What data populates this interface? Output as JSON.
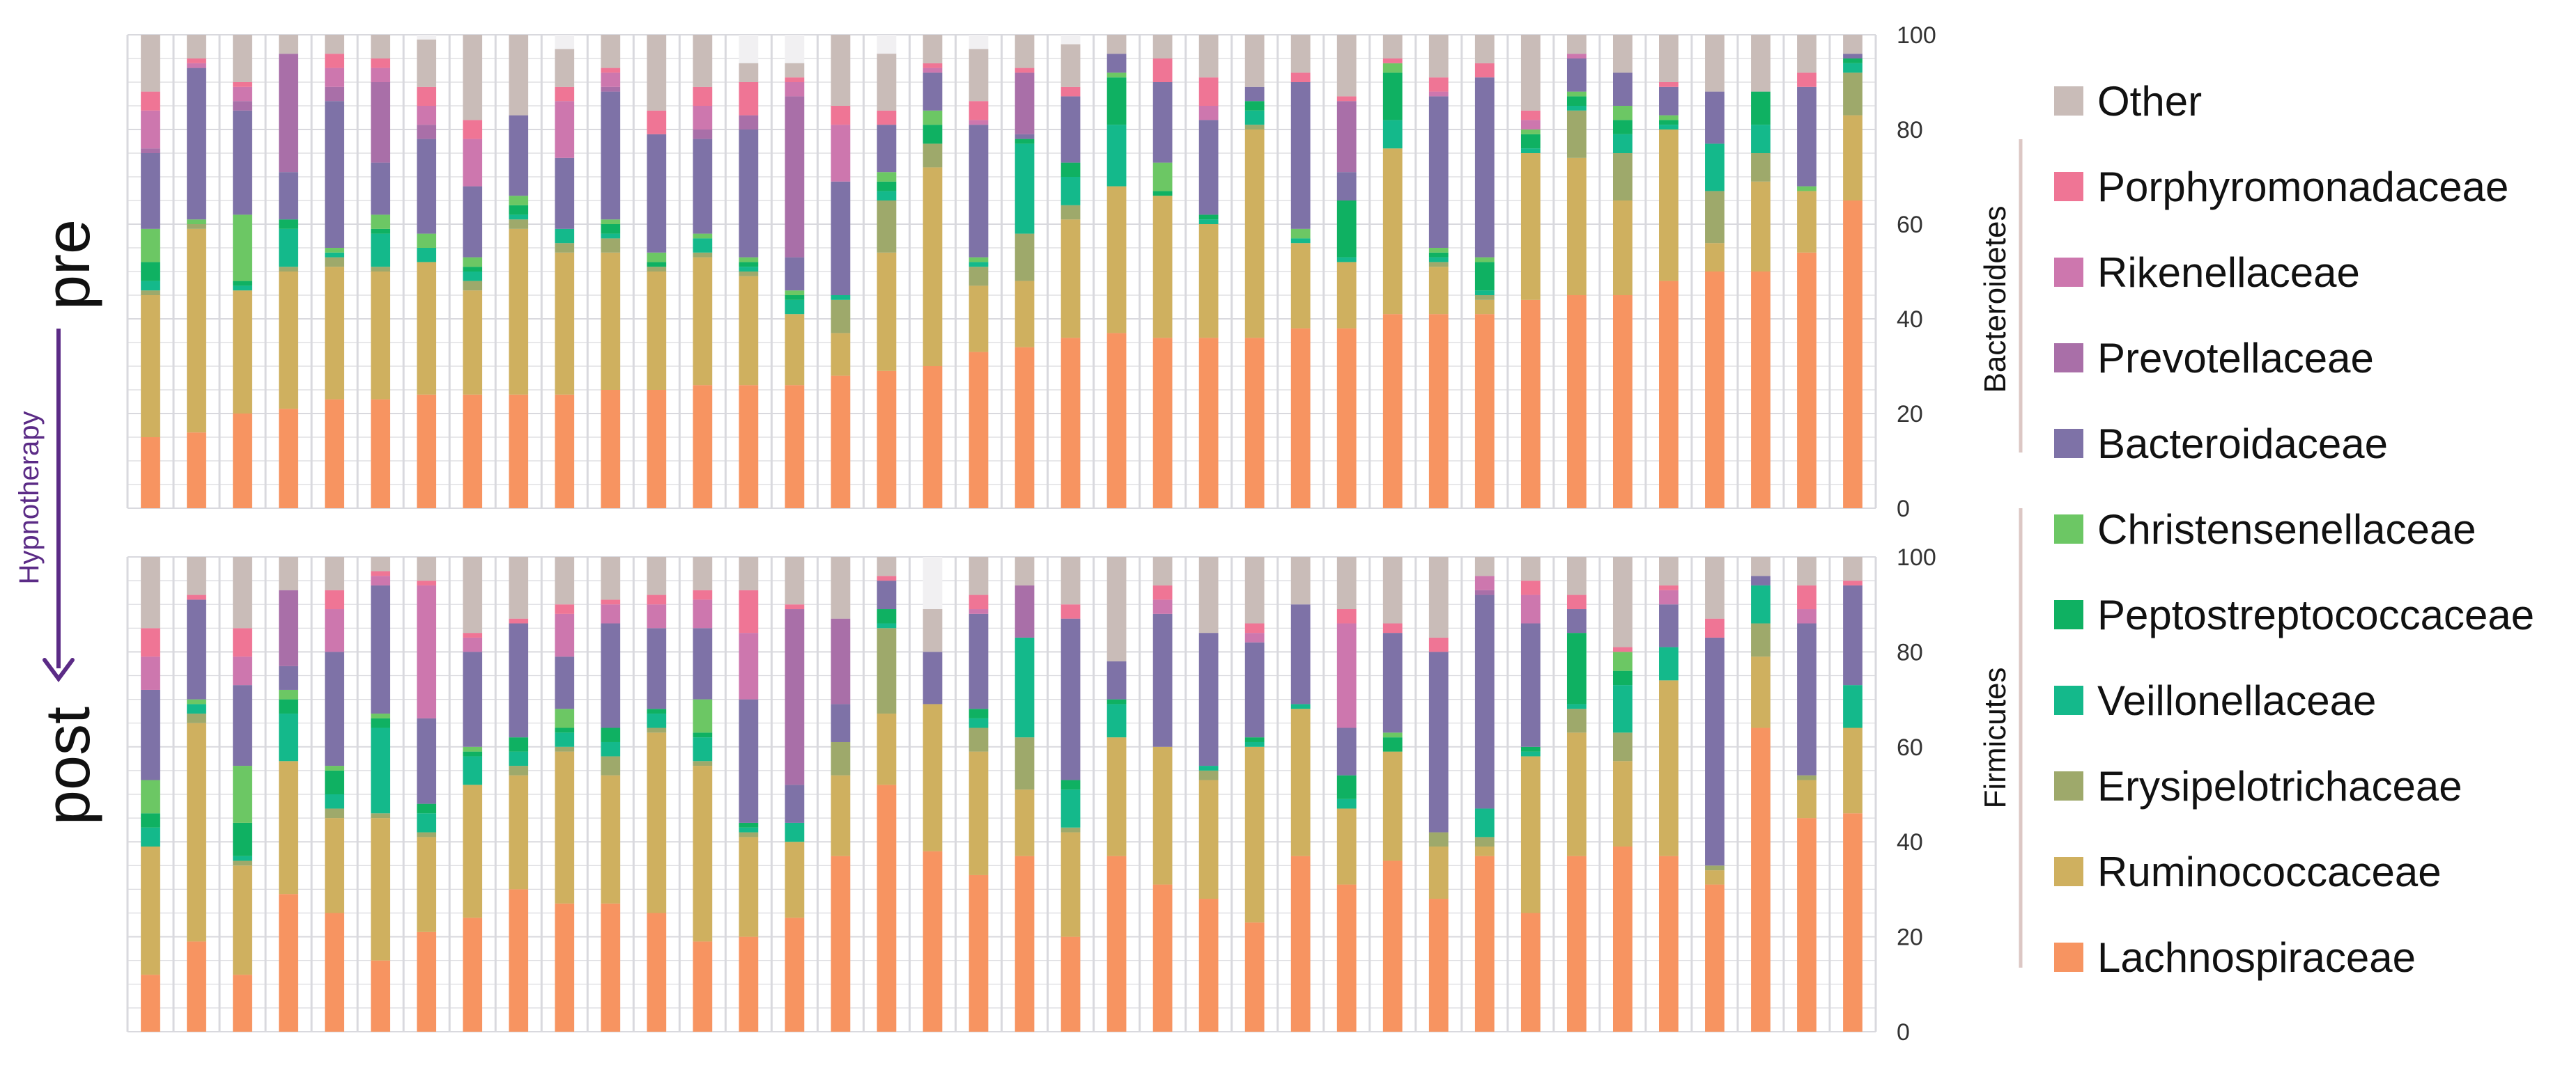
{
  "panel_labels": {
    "pre": "pre",
    "post": "post"
  },
  "arrow_label": "Hypnotherapy",
  "group_labels": {
    "bacteroidetes": "Bacteroidetes",
    "firmicutes": "Firmicutes"
  },
  "colors": {
    "Lachnospiraceae": "#f79461",
    "Ruminococcaceae": "#cfb05f",
    "Erysipelotrichaceae": "#9ea96b",
    "Veillonellaceae": "#14b98b",
    "Peptostreptococcaceae": "#0fb162",
    "Christensenellaceae": "#6cc764",
    "Bacteroidaceae": "#7e72a7",
    "Prevotellaceae": "#a96fa8",
    "Rikenellaceae": "#cd77ae",
    "Porphyromonadaceae": "#ef7595",
    "Other": "#c9bcb8",
    "arrow": "#5b2b86",
    "bracket": "#dcc7c4",
    "grid": "#d9d9de",
    "bar_bg": "#f1f0f2"
  },
  "legend": [
    {
      "key": "Other",
      "label": "Other"
    },
    {
      "key": "Porphyromonadaceae",
      "label": "Porphyromonadaceae"
    },
    {
      "key": "Rikenellaceae",
      "label": "Rikenellaceae"
    },
    {
      "key": "Prevotellaceae",
      "label": "Prevotellaceae"
    },
    {
      "key": "Bacteroidaceae",
      "label": "Bacteroidaceae"
    },
    {
      "key": "Christensenellaceae",
      "label": "Christensenellaceae"
    },
    {
      "key": "Peptostreptococcaceae",
      "label": "Peptostreptococcaceae"
    },
    {
      "key": "Veillonellaceae",
      "label": "Veillonellaceae"
    },
    {
      "key": "Erysipelotrichaceae",
      "label": "Erysipelotrichaceae"
    },
    {
      "key": "Ruminococcaceae",
      "label": "Ruminococcaceae"
    },
    {
      "key": "Lachnospiraceae",
      "label": "Lachnospiraceae"
    }
  ],
  "chart_data": {
    "type": "bar",
    "stacked": true,
    "ylim": [
      0,
      100
    ],
    "yticks": [
      0,
      20,
      40,
      60,
      80,
      100
    ],
    "grid": true,
    "legend_position": "right",
    "stack_order": [
      "Lachnospiraceae",
      "Ruminococcaceae",
      "Erysipelotrichaceae",
      "Veillonellaceae",
      "Peptostreptococcaceae",
      "Christensenellaceae",
      "Bacteroidaceae",
      "Prevotellaceae",
      "Rikenellaceae",
      "Porphyromonadaceae",
      "Other"
    ],
    "panels": [
      {
        "id": "pre",
        "samples": [
          [
            15,
            30,
            1,
            2,
            4,
            7,
            16,
            1,
            8,
            4,
            12
          ],
          [
            16,
            43,
            1,
            0,
            0,
            1,
            32,
            0,
            1,
            1,
            5
          ],
          [
            20,
            26,
            0,
            1,
            1,
            14,
            22,
            2,
            3,
            1,
            10
          ],
          [
            21,
            29,
            1,
            8,
            2,
            0,
            10,
            25,
            0,
            0,
            4
          ],
          [
            23,
            28,
            2,
            1,
            0,
            1,
            31,
            3,
            4,
            3,
            4
          ],
          [
            23,
            27,
            1,
            7,
            1,
            3,
            11,
            17,
            3,
            2,
            5
          ],
          [
            24,
            28,
            0,
            3,
            0,
            3,
            20,
            3,
            4,
            4,
            10
          ],
          [
            24,
            22,
            2,
            2,
            1,
            2,
            15,
            0,
            10,
            4,
            18
          ],
          [
            24,
            35,
            2,
            1,
            2,
            2,
            17,
            0,
            0,
            0,
            17
          ],
          [
            24,
            30,
            2,
            3,
            0,
            0,
            15,
            0,
            12,
            3,
            8
          ],
          [
            25,
            29,
            3,
            1,
            2,
            1,
            27,
            1,
            3,
            1,
            7
          ],
          [
            25,
            25,
            1,
            0,
            1,
            2,
            25,
            0,
            0,
            5,
            16
          ],
          [
            26,
            27,
            1,
            3,
            0,
            1,
            20,
            2,
            5,
            4,
            11
          ],
          [
            26,
            23,
            1,
            1,
            1,
            1,
            27,
            3,
            0,
            7,
            4
          ],
          [
            26,
            15,
            0,
            3,
            1,
            1,
            7,
            34,
            3,
            1,
            3
          ],
          [
            28,
            9,
            7,
            1,
            0,
            0,
            24,
            0,
            12,
            4,
            15
          ],
          [
            29,
            25,
            11,
            2,
            2,
            2,
            10,
            0,
            0,
            3,
            12
          ],
          [
            30,
            42,
            5,
            0,
            4,
            3,
            8,
            0,
            1,
            1,
            6
          ],
          [
            33,
            14,
            4,
            1,
            0,
            1,
            28,
            0,
            1,
            4,
            11
          ],
          [
            34,
            14,
            10,
            19,
            1,
            0,
            1,
            13,
            0,
            1,
            7
          ],
          [
            36,
            25,
            3,
            6,
            3,
            0,
            14,
            0,
            0,
            2,
            9
          ],
          [
            37,
            31,
            0,
            13,
            10,
            1,
            4,
            0,
            0,
            0,
            4
          ],
          [
            36,
            30,
            0,
            0,
            1,
            6,
            17,
            0,
            0,
            5,
            5
          ],
          [
            36,
            24,
            0,
            1,
            1,
            0,
            20,
            0,
            3,
            6,
            9
          ],
          [
            36,
            44,
            1,
            3,
            2,
            0,
            3,
            0,
            0,
            0,
            11
          ],
          [
            38,
            18,
            0,
            1,
            0,
            2,
            31,
            0,
            0,
            2,
            8
          ],
          [
            38,
            14,
            0,
            1,
            12,
            0,
            6,
            15,
            0,
            1,
            13
          ],
          [
            41,
            35,
            0,
            6,
            10,
            2,
            0,
            0,
            0,
            1,
            5
          ],
          [
            41,
            10,
            1,
            1,
            1,
            1,
            32,
            0,
            1,
            3,
            9
          ],
          [
            41,
            3,
            1,
            1,
            6,
            1,
            38,
            0,
            0,
            3,
            6
          ],
          [
            44,
            31,
            0,
            1,
            3,
            1,
            0,
            0,
            2,
            2,
            16
          ],
          [
            45,
            29,
            10,
            1,
            2,
            1,
            7,
            0,
            1,
            0,
            4
          ],
          [
            45,
            20,
            10,
            4,
            3,
            3,
            7,
            0,
            0,
            0,
            8
          ],
          [
            48,
            32,
            0,
            1,
            1,
            1,
            6,
            0,
            0,
            1,
            10
          ],
          [
            50,
            6,
            11,
            10,
            0,
            0,
            11,
            0,
            0,
            0,
            12
          ],
          [
            50,
            19,
            6,
            6,
            7,
            0,
            0,
            0,
            0,
            0,
            12
          ],
          [
            54,
            13,
            0,
            0,
            0,
            1,
            21,
            0,
            0,
            3,
            8
          ],
          [
            65,
            18,
            9,
            2,
            1,
            0,
            1,
            0,
            0,
            0,
            4
          ]
        ]
      },
      {
        "id": "post",
        "samples": [
          [
            12,
            27,
            0,
            4,
            3,
            7,
            19,
            0,
            7,
            6,
            15
          ],
          [
            19,
            46,
            2,
            2,
            0,
            1,
            21,
            0,
            0,
            1,
            8
          ],
          [
            12,
            23,
            1,
            1,
            7,
            12,
            17,
            0,
            6,
            6,
            15
          ],
          [
            29,
            28,
            0,
            10,
            3,
            2,
            5,
            16,
            0,
            0,
            7
          ],
          [
            25,
            20,
            2,
            3,
            5,
            1,
            24,
            0,
            9,
            4,
            7
          ],
          [
            15,
            30,
            1,
            18,
            2,
            1,
            27,
            0,
            2,
            1,
            3
          ],
          [
            21,
            20,
            1,
            4,
            2,
            0,
            18,
            0,
            28,
            1,
            5
          ],
          [
            24,
            28,
            0,
            6,
            1,
            1,
            20,
            0,
            3,
            1,
            16
          ],
          [
            30,
            24,
            2,
            3,
            3,
            0,
            24,
            0,
            0,
            1,
            13
          ],
          [
            27,
            32,
            1,
            3,
            1,
            4,
            11,
            0,
            9,
            2,
            10
          ],
          [
            27,
            27,
            4,
            3,
            3,
            0,
            22,
            0,
            4,
            1,
            9
          ],
          [
            25,
            38,
            1,
            3,
            1,
            0,
            17,
            0,
            5,
            2,
            8
          ],
          [
            19,
            37,
            1,
            5,
            1,
            7,
            15,
            0,
            6,
            2,
            7
          ],
          [
            20,
            21,
            1,
            1,
            1,
            0,
            26,
            0,
            14,
            9,
            7
          ],
          [
            24,
            16,
            0,
            4,
            0,
            0,
            8,
            37,
            0,
            1,
            10
          ],
          [
            37,
            17,
            7,
            0,
            0,
            0,
            8,
            18,
            0,
            0,
            13
          ],
          [
            52,
            15,
            18,
            1,
            3,
            0,
            6,
            0,
            0,
            1,
            4
          ],
          [
            38,
            31,
            0,
            0,
            0,
            0,
            11,
            0,
            0,
            0,
            9
          ],
          [
            33,
            26,
            5,
            2,
            2,
            0,
            20,
            0,
            1,
            3,
            8
          ],
          [
            37,
            14,
            11,
            21,
            0,
            0,
            0,
            11,
            0,
            0,
            6
          ],
          [
            20,
            22,
            1,
            8,
            2,
            0,
            34,
            0,
            0,
            3,
            10
          ],
          [
            37,
            25,
            0,
            7,
            1,
            0,
            8,
            0,
            0,
            0,
            22
          ],
          [
            31,
            29,
            0,
            0,
            0,
            0,
            28,
            0,
            3,
            3,
            6
          ],
          [
            28,
            25,
            2,
            1,
            0,
            0,
            28,
            0,
            0,
            0,
            16
          ],
          [
            23,
            37,
            0,
            1,
            1,
            0,
            20,
            0,
            2,
            2,
            14
          ],
          [
            37,
            31,
            0,
            1,
            0,
            0,
            21,
            0,
            0,
            0,
            10
          ],
          [
            31,
            16,
            0,
            2,
            5,
            0,
            10,
            0,
            22,
            3,
            11
          ],
          [
            36,
            23,
            0,
            0,
            3,
            1,
            21,
            0,
            0,
            2,
            14
          ],
          [
            28,
            11,
            3,
            0,
            0,
            0,
            38,
            0,
            0,
            3,
            17
          ],
          [
            37,
            2,
            2,
            6,
            0,
            0,
            45,
            1,
            3,
            0,
            4
          ],
          [
            25,
            33,
            0,
            1,
            1,
            0,
            26,
            0,
            6,
            3,
            5
          ],
          [
            37,
            26,
            5,
            1,
            15,
            0,
            5,
            0,
            0,
            3,
            8
          ],
          [
            39,
            18,
            6,
            10,
            3,
            4,
            0,
            0,
            0,
            1,
            19
          ],
          [
            37,
            37,
            0,
            7,
            0,
            0,
            9,
            0,
            3,
            1,
            6
          ],
          [
            31,
            3,
            1,
            0,
            0,
            0,
            48,
            0,
            0,
            4,
            13
          ],
          [
            64,
            15,
            7,
            8,
            0,
            0,
            2,
            0,
            0,
            0,
            4
          ],
          [
            45,
            8,
            1,
            0,
            0,
            0,
            32,
            0,
            3,
            5,
            6
          ],
          [
            46,
            18,
            0,
            9,
            0,
            0,
            21,
            0,
            0,
            1,
            5
          ]
        ]
      }
    ]
  }
}
